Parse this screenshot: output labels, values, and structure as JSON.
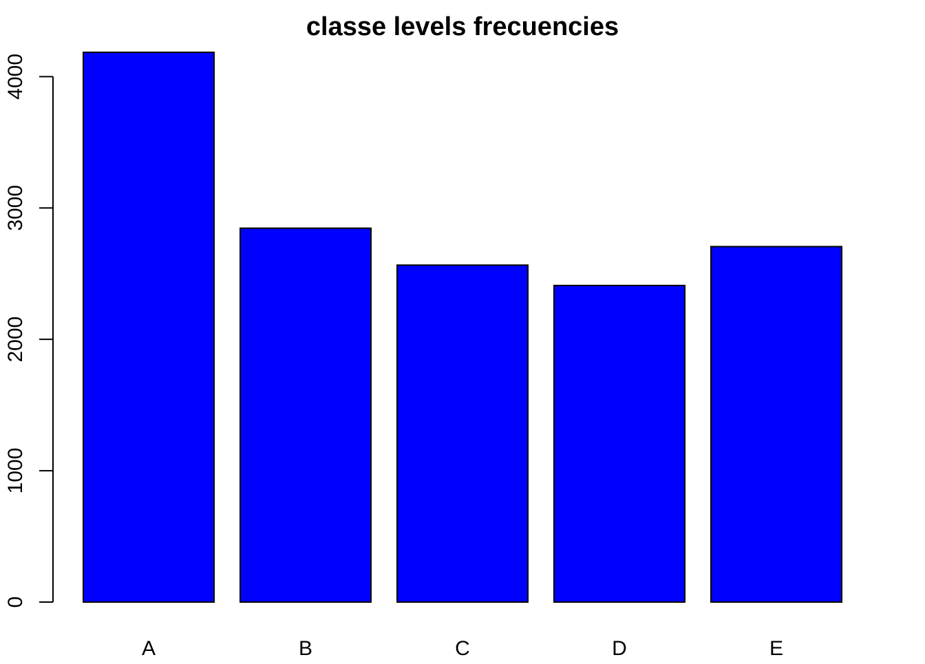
{
  "chart_data": {
    "type": "bar",
    "title": "classe levels frecuencies",
    "xlabel": "",
    "ylabel": "",
    "categories": [
      "A",
      "B",
      "C",
      "D",
      "E"
    ],
    "values": [
      4185,
      2846,
      2565,
      2410,
      2706
    ],
    "ylim": [
      0,
      4185
    ],
    "yticks": [
      0,
      1000,
      2000,
      3000,
      4000
    ],
    "ytick_labels": [
      "0",
      "1000",
      "2000",
      "3000",
      "4000"
    ],
    "grid": false,
    "legend": "none",
    "bar_color": "#0000FF",
    "border_color": "#000000"
  }
}
